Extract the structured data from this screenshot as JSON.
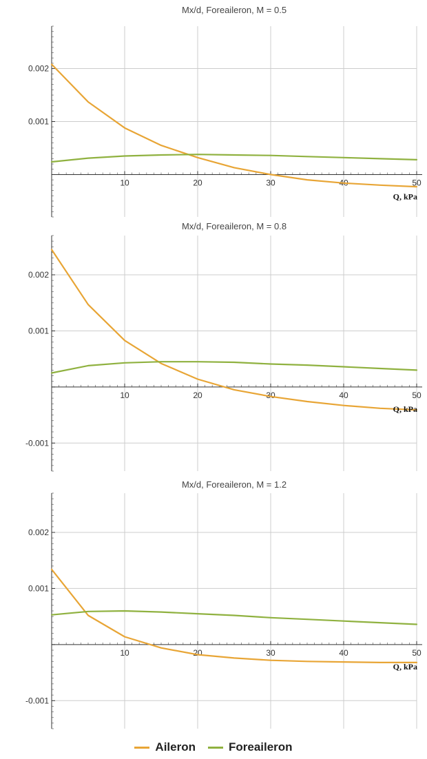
{
  "colors": {
    "aileron": "#e8a535",
    "foreaileron": "#8fb13f",
    "grid": "#cccccc",
    "axis": "#333333"
  },
  "legend": [
    {
      "key": "aileron",
      "label": "Aileron"
    },
    {
      "key": "foreaileron",
      "label": "Foreaileron"
    }
  ],
  "chart_data": [
    {
      "type": "line",
      "title": "Mx/d, Foreaileron, M = 0.5",
      "xlabel": "Q, kPa",
      "ylabel": "",
      "xlim": [
        0,
        50
      ],
      "ylim": [
        -0.0008,
        0.0028
      ],
      "x_ticks": [
        10,
        20,
        30,
        40,
        50
      ],
      "x_tick_labels": [
        "10",
        "20",
        "30",
        "40",
        "50"
      ],
      "y_ticks": [
        0.001,
        0.002
      ],
      "y_tick_labels": [
        "0.001",
        "0.002"
      ],
      "x_gridlines": [
        10,
        20,
        30,
        40,
        50
      ],
      "grid": true,
      "series": [
        {
          "key": "aileron",
          "name": "Aileron",
          "x": [
            0,
            5,
            10,
            15,
            20,
            25,
            30,
            35,
            40,
            45,
            50
          ],
          "y": [
            0.00208,
            0.00137,
            0.00088,
            0.00055,
            0.00032,
            0.00013,
            0.0,
            -0.0001,
            -0.00016,
            -0.0002,
            -0.00023
          ]
        },
        {
          "key": "foreaileron",
          "name": "Foreaileron",
          "x": [
            0,
            5,
            10,
            15,
            20,
            25,
            30,
            35,
            40,
            45,
            50
          ],
          "y": [
            0.00024,
            0.00031,
            0.00035,
            0.00037,
            0.00038,
            0.00037,
            0.00036,
            0.00034,
            0.00032,
            0.0003,
            0.00028
          ]
        }
      ]
    },
    {
      "type": "line",
      "title": "Mx/d, Foreaileron, M = 0.8",
      "xlabel": "Q, kPa",
      "ylabel": "",
      "xlim": [
        0,
        50
      ],
      "ylim": [
        -0.0015,
        0.0027
      ],
      "x_ticks": [
        10,
        20,
        30,
        40,
        50
      ],
      "x_tick_labels": [
        "10",
        "20",
        "30",
        "40",
        "50"
      ],
      "y_ticks": [
        -0.001,
        0.001,
        0.002
      ],
      "y_tick_labels": [
        "-0.001",
        "0.001",
        "0.002"
      ],
      "x_gridlines": [
        10,
        20,
        30,
        40,
        50
      ],
      "grid": true,
      "series": [
        {
          "key": "aileron",
          "name": "Aileron",
          "x": [
            0,
            5,
            10,
            15,
            20,
            25,
            30,
            35,
            40,
            45,
            50
          ],
          "y": [
            0.00245,
            0.00147,
            0.00083,
            0.00042,
            0.00014,
            -5e-05,
            -0.00017,
            -0.00026,
            -0.00033,
            -0.00038,
            -0.00041
          ]
        },
        {
          "key": "foreaileron",
          "name": "Foreaileron",
          "x": [
            0,
            5,
            10,
            15,
            20,
            25,
            30,
            35,
            40,
            45,
            50
          ],
          "y": [
            0.00025,
            0.00038,
            0.00043,
            0.00045,
            0.00045,
            0.00044,
            0.00041,
            0.00039,
            0.00036,
            0.00033,
            0.0003
          ]
        }
      ]
    },
    {
      "type": "line",
      "title": "Mx/d, Foreaileron, M = 1.2",
      "xlabel": "Q, kPa",
      "ylabel": "",
      "xlim": [
        0,
        50
      ],
      "ylim": [
        -0.0015,
        0.0027
      ],
      "x_ticks": [
        10,
        20,
        30,
        40,
        50
      ],
      "x_tick_labels": [
        "10",
        "20",
        "30",
        "40",
        "50"
      ],
      "y_ticks": [
        -0.001,
        0.001,
        0.002
      ],
      "y_tick_labels": [
        "-0.001",
        "0.001",
        "0.002"
      ],
      "x_gridlines": [
        10,
        20,
        30,
        40,
        50
      ],
      "grid": true,
      "series": [
        {
          "key": "aileron",
          "name": "Aileron",
          "x": [
            0,
            5,
            10,
            15,
            20,
            25,
            30,
            35,
            40,
            45,
            50
          ],
          "y": [
            0.00134,
            0.00052,
            0.00014,
            -6e-05,
            -0.00018,
            -0.00024,
            -0.00028,
            -0.0003,
            -0.00031,
            -0.00032,
            -0.00032
          ]
        },
        {
          "key": "foreaileron",
          "name": "Foreaileron",
          "x": [
            0,
            5,
            10,
            15,
            20,
            25,
            30,
            35,
            40,
            45,
            50
          ],
          "y": [
            0.00053,
            0.00059,
            0.0006,
            0.00058,
            0.00055,
            0.00052,
            0.00048,
            0.00045,
            0.00042,
            0.00039,
            0.00036
          ]
        }
      ]
    }
  ]
}
